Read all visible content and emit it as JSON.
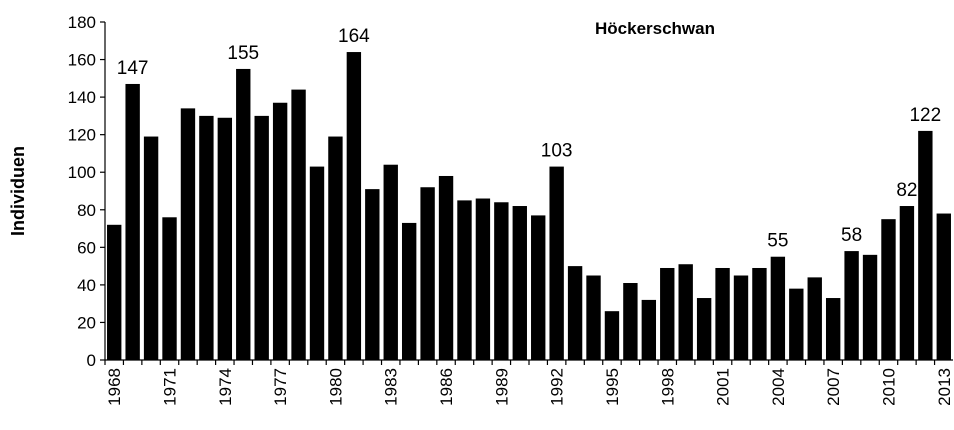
{
  "chart_data": {
    "type": "bar",
    "title": "Höckerschwan",
    "y_label": "Individuen",
    "categories": [
      "1968",
      null,
      null,
      "1971",
      null,
      null,
      "1974",
      null,
      null,
      "1977",
      null,
      null,
      "1980",
      null,
      null,
      "1983",
      null,
      null,
      "1986",
      null,
      null,
      "1989",
      null,
      null,
      "1992",
      null,
      null,
      "1995",
      null,
      null,
      "1998",
      null,
      null,
      "2001",
      null,
      null,
      "2004",
      null,
      null,
      "2007",
      null,
      null,
      "2010",
      null,
      null,
      "2013"
    ],
    "values": [
      72,
      147,
      119,
      76,
      134,
      130,
      129,
      155,
      130,
      137,
      144,
      103,
      119,
      164,
      91,
      104,
      73,
      92,
      98,
      85,
      86,
      84,
      82,
      77,
      103,
      50,
      45,
      26,
      41,
      32,
      49,
      51,
      33,
      49,
      45,
      49,
      55,
      38,
      44,
      33,
      58,
      56,
      75,
      82,
      122,
      78
    ],
    "value_labels": [
      null,
      "147",
      null,
      null,
      null,
      null,
      null,
      "155",
      null,
      null,
      null,
      null,
      null,
      "164",
      null,
      null,
      null,
      null,
      null,
      null,
      null,
      null,
      null,
      null,
      "103",
      null,
      null,
      null,
      null,
      null,
      null,
      null,
      null,
      null,
      null,
      null,
      "55",
      null,
      null,
      null,
      "58",
      null,
      null,
      "82",
      "122",
      null
    ],
    "color": "#000000",
    "ylim": [
      0,
      180
    ],
    "yticks": [
      0,
      20,
      40,
      60,
      80,
      100,
      120,
      140,
      160,
      180
    ],
    "grid": false
  }
}
